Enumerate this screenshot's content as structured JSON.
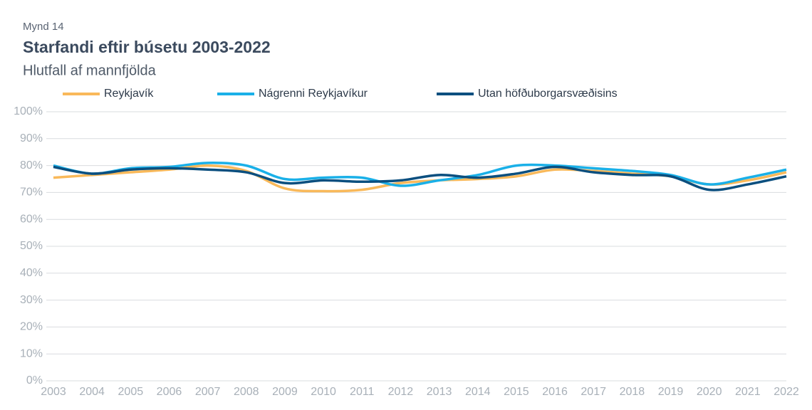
{
  "chart_data": {
    "type": "line",
    "label": "Mynd 14",
    "title": "Starfandi eftir búsetu 2003-2022",
    "subtitle": "Hlutfall af mannfjölda",
    "categories": [
      "2003",
      "2004",
      "2005",
      "2006",
      "2007",
      "2008",
      "2009",
      "2010",
      "2011",
      "2012",
      "2013",
      "2014",
      "2015",
      "2016",
      "2017",
      "2018",
      "2019",
      "2020",
      "2021",
      "2022"
    ],
    "series": [
      {
        "name": "Reykjavík",
        "color": "#f9b95a",
        "values": [
          75.5,
          76.5,
          77.5,
          78.5,
          80,
          78,
          71.5,
          70.5,
          71,
          73.5,
          74.5,
          75,
          76,
          78.5,
          78,
          77,
          76,
          73,
          74.5,
          77.5
        ]
      },
      {
        "name": "Nágrenni Reykjavíkur",
        "color": "#1ab0e8",
        "values": [
          80,
          77,
          79,
          79.5,
          81,
          80,
          75,
          75.5,
          75.5,
          72.5,
          74.5,
          76.5,
          80,
          80,
          79,
          78,
          76.5,
          73,
          75.5,
          78.5
        ]
      },
      {
        "name": "Utan höfðuborgarsvæðisins",
        "color": "#0b4f7f",
        "values": [
          79.5,
          77,
          78.5,
          79,
          78.5,
          77.5,
          73.5,
          74.5,
          74,
          74.5,
          76.5,
          75.5,
          77,
          79.5,
          77.5,
          76.5,
          76,
          71,
          73,
          76
        ]
      }
    ],
    "ylim": [
      0,
      100
    ],
    "yticks": [
      {
        "value": 0,
        "label": "0%"
      },
      {
        "value": 10,
        "label": "10%"
      },
      {
        "value": 20,
        "label": "20%"
      },
      {
        "value": 30,
        "label": "30%"
      },
      {
        "value": 40,
        "label": "40%"
      },
      {
        "value": 50,
        "label": "50%"
      },
      {
        "value": 60,
        "label": "60%"
      },
      {
        "value": 70,
        "label": "70%"
      },
      {
        "value": 80,
        "label": "80%"
      },
      {
        "value": 90,
        "label": "90%"
      },
      {
        "value": 100,
        "label": "100%"
      }
    ],
    "grid": true,
    "legend": "top",
    "smooth": true
  }
}
